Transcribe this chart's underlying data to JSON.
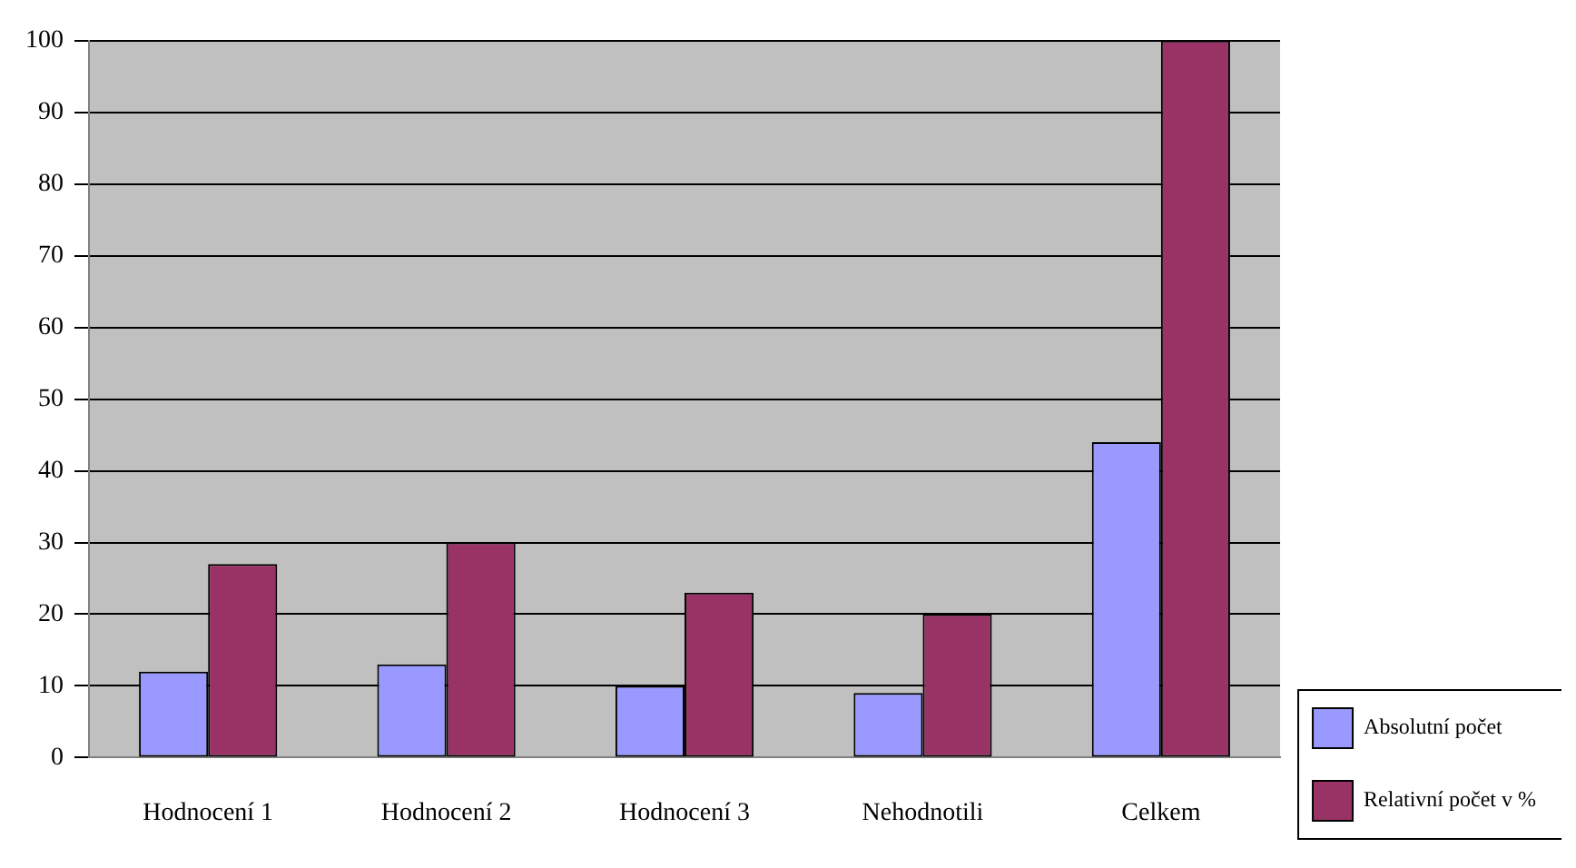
{
  "chart_data": {
    "type": "bar",
    "categories": [
      "Hodnocení 1",
      "Hodnocení 2",
      "Hodnocení 3",
      "Nehodnotili",
      "Celkem"
    ],
    "series": [
      {
        "name": "Absolutní počet",
        "color": "#9999ff",
        "values": [
          12,
          13,
          10,
          9,
          44
        ]
      },
      {
        "name": "Relativní počet v %",
        "color": "#993366",
        "values": [
          27,
          30,
          23,
          20,
          100
        ]
      }
    ],
    "ylim": [
      0,
      100
    ],
    "yticks": [
      0,
      10,
      20,
      30,
      40,
      50,
      60,
      70,
      80,
      90,
      100
    ],
    "grid": "y",
    "legend": "bottom right"
  }
}
